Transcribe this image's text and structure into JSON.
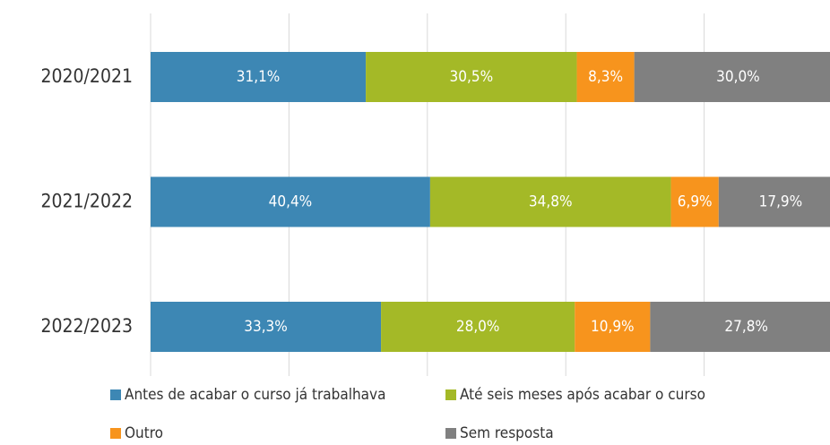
{
  "chart_data": {
    "type": "stacked_barh",
    "categories": [
      "2020/2021",
      "2021/2022",
      "2022/2023"
    ],
    "series": [
      {
        "name": "Antes de acabar o curso já trabalhava",
        "color": "#3d87b4",
        "values": [
          31.1,
          40.4,
          33.3
        ],
        "value_labels": [
          "31,1%",
          "40,4%",
          "33,3%"
        ]
      },
      {
        "name": "Até seis meses após acabar o curso",
        "color": "#a4b927",
        "values": [
          30.5,
          34.8,
          28.0
        ],
        "value_labels": [
          "30,5%",
          "34,8%",
          "28,0%"
        ]
      },
      {
        "name": "Outro",
        "color": "#f7941d",
        "values": [
          8.3,
          6.9,
          10.9
        ],
        "value_labels": [
          "8,3%",
          "6,9%",
          "10,9%"
        ]
      },
      {
        "name": "Sem resposta",
        "color": "#808080",
        "values": [
          30.0,
          17.9,
          27.8
        ],
        "value_labels": [
          "30,0%",
          "17,9%",
          "27,8%"
        ]
      }
    ],
    "xlim": [
      0,
      100
    ],
    "xticks": [
      0,
      20,
      40,
      60,
      80,
      100
    ],
    "grid": true
  }
}
